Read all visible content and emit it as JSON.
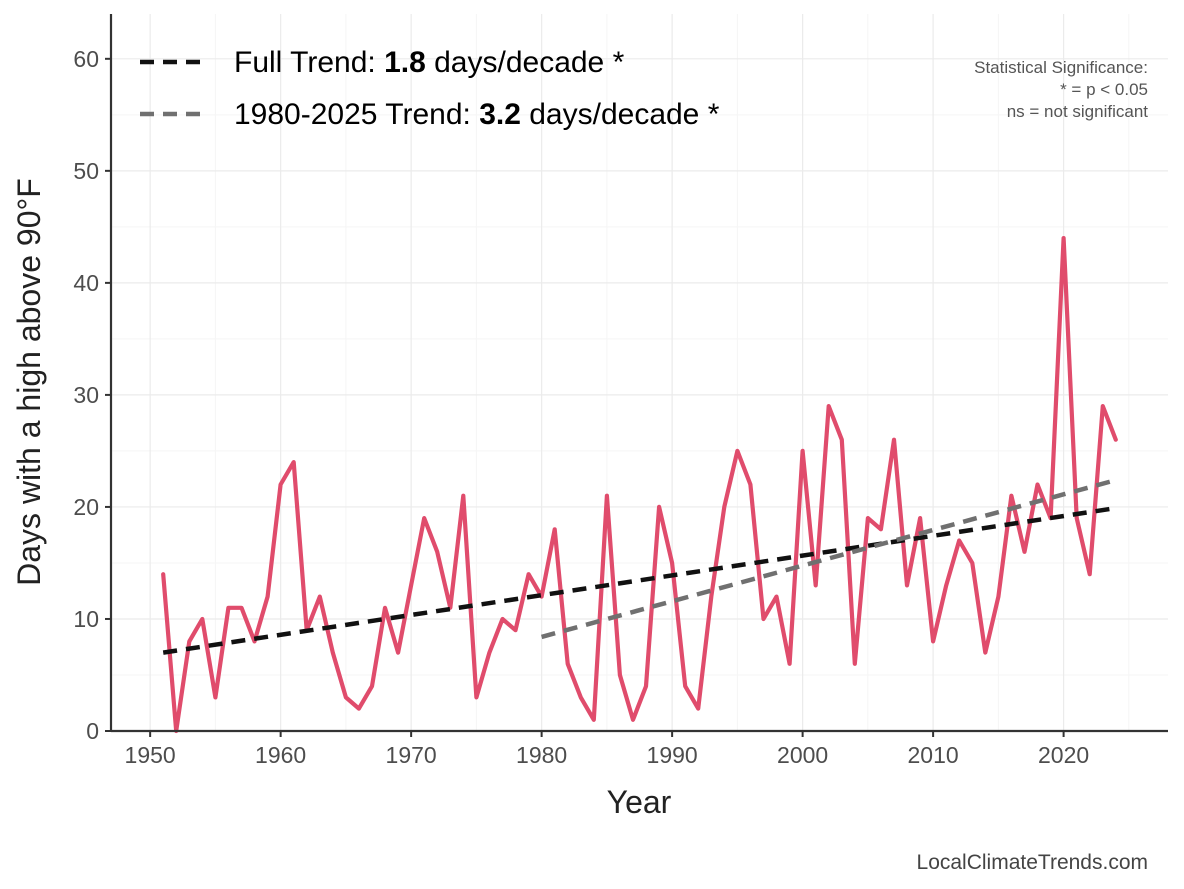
{
  "chart_data": {
    "type": "line",
    "title": "",
    "xlabel": "Year",
    "ylabel": "Days with a high above 90°F",
    "xlim": [
      1947,
      2028
    ],
    "ylim": [
      0,
      64
    ],
    "x_ticks": [
      1950,
      1960,
      1970,
      1980,
      1990,
      2000,
      2010,
      2020
    ],
    "y_ticks": [
      0,
      10,
      20,
      30,
      40,
      50,
      60
    ],
    "grid": true,
    "legend_position": "top-left",
    "series": [
      {
        "kind": "observed",
        "color": "#e04c6c",
        "x": [
          1951,
          1952,
          1953,
          1954,
          1955,
          1956,
          1957,
          1958,
          1959,
          1960,
          1961,
          1962,
          1963,
          1964,
          1965,
          1966,
          1967,
          1968,
          1969,
          1970,
          1971,
          1972,
          1973,
          1974,
          1975,
          1976,
          1977,
          1978,
          1979,
          1980,
          1981,
          1982,
          1983,
          1984,
          1985,
          1986,
          1987,
          1988,
          1989,
          1990,
          1991,
          1992,
          1993,
          1994,
          1995,
          1996,
          1997,
          1998,
          1999,
          2000,
          2001,
          2002,
          2003,
          2004,
          2005,
          2006,
          2007,
          2008,
          2009,
          2010,
          2011,
          2012,
          2013,
          2014,
          2015,
          2016,
          2017,
          2018,
          2019,
          2020,
          2021,
          2022,
          2023,
          2024
        ],
        "values": [
          14,
          0,
          8,
          10,
          3,
          11,
          11,
          8,
          12,
          22,
          24,
          9,
          12,
          7,
          3,
          2,
          4,
          11,
          7,
          13,
          19,
          16,
          11,
          21,
          3,
          7,
          10,
          9,
          14,
          12,
          18,
          6,
          3,
          1,
          21,
          5,
          1,
          4,
          20,
          15,
          4,
          2,
          12,
          20,
          25,
          22,
          10,
          12,
          6,
          25,
          13,
          29,
          26,
          6,
          19,
          18,
          26,
          13,
          19,
          8,
          13,
          17,
          15,
          7,
          12,
          21,
          16,
          22,
          19,
          44,
          19,
          14,
          29,
          26
        ]
      },
      {
        "kind": "trend-full",
        "color": "#111111",
        "x": [
          1951,
          2024
        ],
        "values": [
          7.0,
          19.9
        ]
      },
      {
        "kind": "trend-recent",
        "color": "#707070",
        "x": [
          1980,
          2024
        ],
        "values": [
          8.4,
          22.4
        ]
      }
    ],
    "legend": [
      {
        "prefix": "Full Trend: ",
        "value": "1.8",
        "suffix": " days/decade *",
        "color": "#111111"
      },
      {
        "prefix": "1980-2025 Trend: ",
        "value": "3.2",
        "suffix": " days/decade *",
        "color": "#707070"
      }
    ],
    "annotations": {
      "significance": [
        "Statistical Significance:",
        "* = p < 0.05",
        "ns = not significant"
      ],
      "credit": "LocalClimateTrends.com"
    }
  }
}
